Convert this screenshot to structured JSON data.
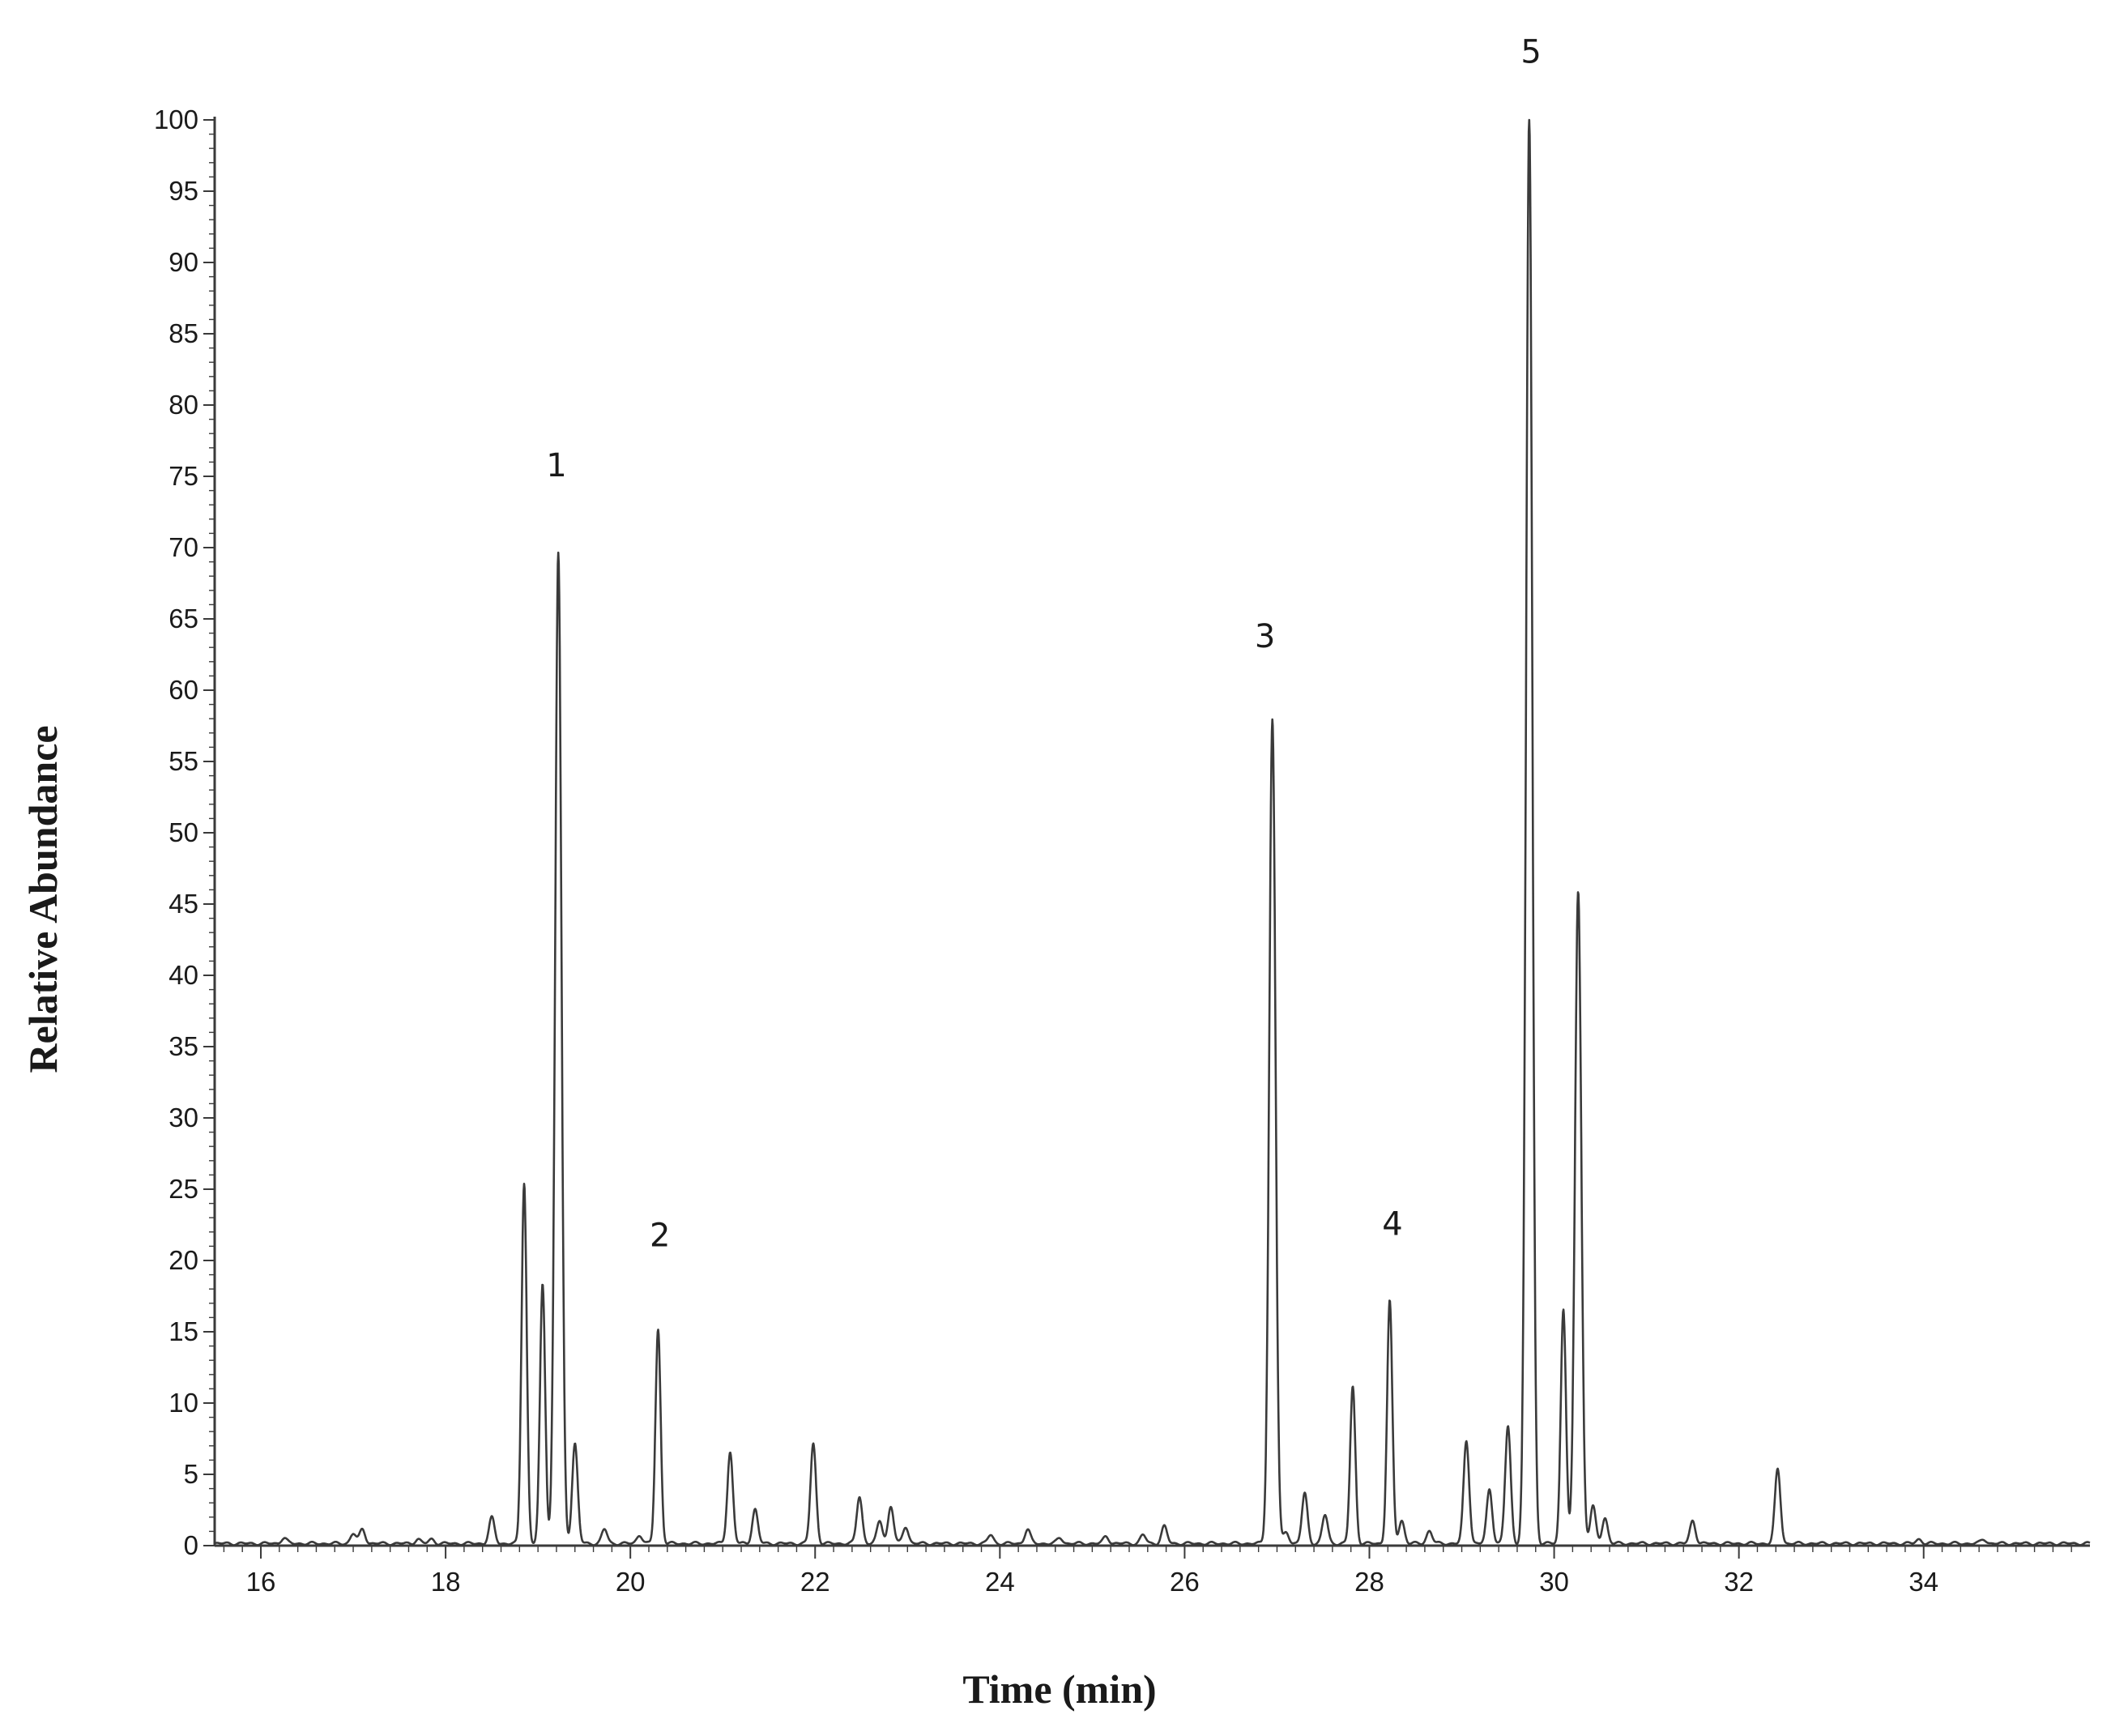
{
  "chart_data": {
    "type": "line",
    "title": "",
    "xlabel": "Time (min)",
    "ylabel": "Relative Abundance",
    "xlim": [
      15.5,
      35.8
    ],
    "ylim": [
      0,
      100
    ],
    "x_ticks": [
      "16",
      "18",
      "20",
      "22",
      "24",
      "26",
      "28",
      "30",
      "32",
      "34"
    ],
    "y_ticks": [
      "0",
      "5",
      "10",
      "15",
      "20",
      "25",
      "30",
      "35",
      "40",
      "45",
      "50",
      "55",
      "60",
      "65",
      "70",
      "75",
      "80",
      "85",
      "90",
      "95",
      "100"
    ],
    "grid": false,
    "legend": "none",
    "line_color": "#3a3a3a",
    "peaks": [
      {
        "x": 16.25,
        "y": 0.4
      },
      {
        "x": 17.0,
        "y": 0.7
      },
      {
        "x": 17.1,
        "y": 1.0
      },
      {
        "x": 17.7,
        "y": 0.3
      },
      {
        "x": 17.85,
        "y": 0.3
      },
      {
        "x": 18.5,
        "y": 1.8
      },
      {
        "x": 18.85,
        "y": 25.3
      },
      {
        "x": 19.05,
        "y": 18.2
      },
      {
        "x": 19.22,
        "y": 69.5
      },
      {
        "x": 19.4,
        "y": 7.0
      },
      {
        "x": 19.72,
        "y": 1.0
      },
      {
        "x": 20.1,
        "y": 0.6
      },
      {
        "x": 20.3,
        "y": 15.0
      },
      {
        "x": 21.08,
        "y": 6.4
      },
      {
        "x": 21.35,
        "y": 2.4
      },
      {
        "x": 21.98,
        "y": 7.0
      },
      {
        "x": 22.48,
        "y": 3.3
      },
      {
        "x": 22.7,
        "y": 1.6
      },
      {
        "x": 22.82,
        "y": 2.6
      },
      {
        "x": 22.98,
        "y": 1.2
      },
      {
        "x": 23.9,
        "y": 0.6
      },
      {
        "x": 24.3,
        "y": 1.0
      },
      {
        "x": 24.65,
        "y": 0.4
      },
      {
        "x": 25.15,
        "y": 0.5
      },
      {
        "x": 25.55,
        "y": 0.6
      },
      {
        "x": 25.78,
        "y": 1.2
      },
      {
        "x": 26.95,
        "y": 57.8
      },
      {
        "x": 27.1,
        "y": 0.8
      },
      {
        "x": 27.3,
        "y": 3.5
      },
      {
        "x": 27.52,
        "y": 2.0
      },
      {
        "x": 27.82,
        "y": 11.0
      },
      {
        "x": 28.22,
        "y": 17.0
      },
      {
        "x": 28.35,
        "y": 1.6
      },
      {
        "x": 28.65,
        "y": 0.9
      },
      {
        "x": 29.05,
        "y": 7.2
      },
      {
        "x": 29.3,
        "y": 3.8
      },
      {
        "x": 29.5,
        "y": 8.2
      },
      {
        "x": 29.73,
        "y": 100
      },
      {
        "x": 30.1,
        "y": 16.5
      },
      {
        "x": 30.26,
        "y": 45.8
      },
      {
        "x": 30.42,
        "y": 2.6
      },
      {
        "x": 30.55,
        "y": 1.8
      },
      {
        "x": 31.5,
        "y": 1.6
      },
      {
        "x": 32.42,
        "y": 5.2
      },
      {
        "x": 33.95,
        "y": 0.3
      },
      {
        "x": 34.65,
        "y": 0.3
      }
    ],
    "annotations": [
      {
        "text": "1",
        "x": 19.2,
        "y": 75
      },
      {
        "text": "2",
        "x": 20.32,
        "y": 21
      },
      {
        "text": "3",
        "x": 26.87,
        "y": 63
      },
      {
        "text": "4",
        "x": 28.25,
        "y": 21.8
      },
      {
        "text": "5",
        "x": 29.75,
        "y": 104
      }
    ]
  }
}
